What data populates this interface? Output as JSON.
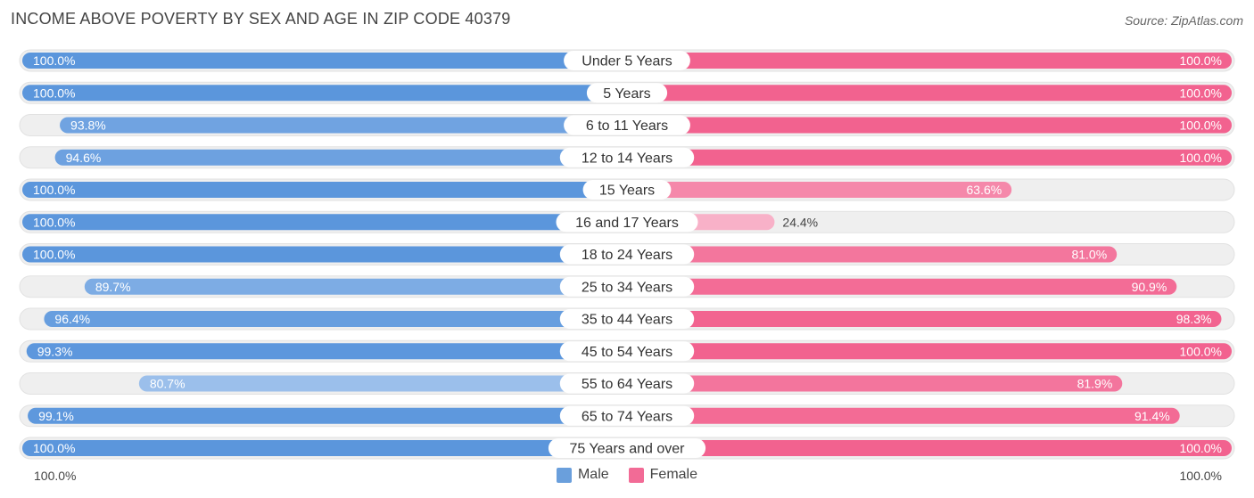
{
  "title": "INCOME ABOVE POVERTY BY SEX AND AGE IN ZIP CODE 40379",
  "source": "Source: ZipAtlas.com",
  "axis": {
    "left_label": "100.0%",
    "right_label": "100.0%"
  },
  "legend": [
    {
      "name": "Male",
      "color": "#6a9fdc"
    },
    {
      "name": "Female",
      "color": "#f26b96"
    }
  ],
  "chart_data": {
    "type": "bar",
    "title": "INCOME ABOVE POVERTY BY SEX AND AGE IN ZIP CODE 40379",
    "orientation": "horizontal-diverging",
    "xlim": [
      0,
      100
    ],
    "unit": "%",
    "categories": [
      "Under 5 Years",
      "5 Years",
      "6 to 11 Years",
      "12 to 14 Years",
      "15 Years",
      "16 and 17 Years",
      "18 to 24 Years",
      "25 to 34 Years",
      "35 to 44 Years",
      "45 to 54 Years",
      "55 to 64 Years",
      "65 to 74 Years",
      "75 Years and over"
    ],
    "series": [
      {
        "name": "Male",
        "values": [
          100.0,
          100.0,
          93.8,
          94.6,
          100.0,
          100.0,
          100.0,
          89.7,
          96.4,
          99.3,
          80.7,
          99.1,
          100.0
        ],
        "labels": [
          "100.0%",
          "100.0%",
          "93.8%",
          "94.6%",
          "100.0%",
          "100.0%",
          "100.0%",
          "89.7%",
          "96.4%",
          "99.3%",
          "80.7%",
          "99.1%",
          "100.0%"
        ]
      },
      {
        "name": "Female",
        "values": [
          100.0,
          100.0,
          100.0,
          100.0,
          63.6,
          24.4,
          81.0,
          90.9,
          98.3,
          100.0,
          81.9,
          91.4,
          100.0
        ],
        "labels": [
          "100.0%",
          "100.0%",
          "100.0%",
          "100.0%",
          "63.6%",
          "24.4%",
          "81.0%",
          "90.9%",
          "98.3%",
          "100.0%",
          "81.9%",
          "91.4%",
          "100.0%"
        ]
      }
    ]
  }
}
